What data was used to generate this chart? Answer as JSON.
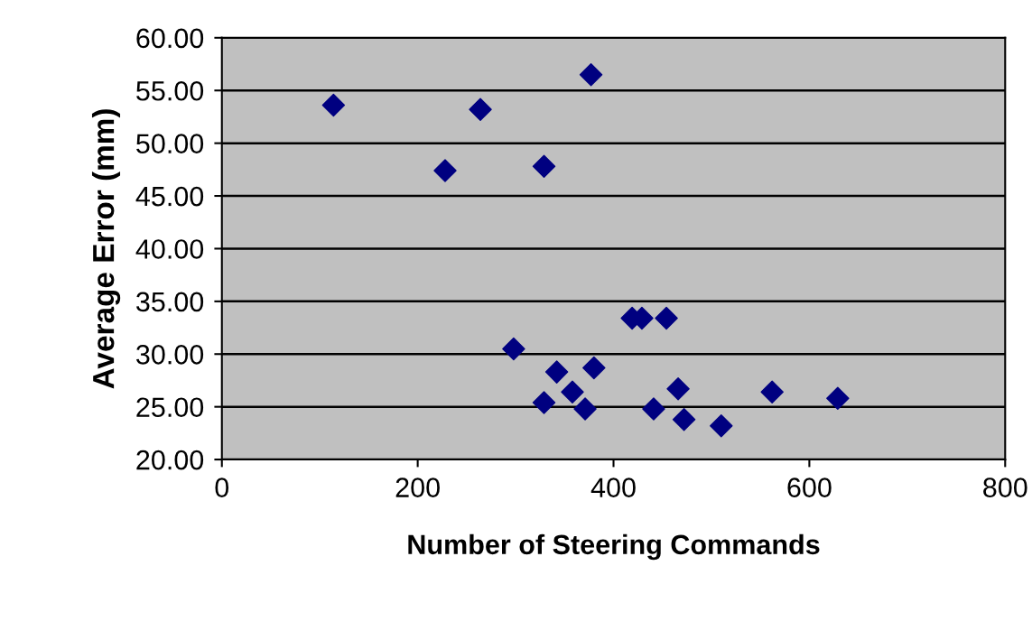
{
  "chart_data": {
    "type": "scatter",
    "xlabel": "Number of Steering Commands",
    "ylabel": "Average Error (mm)",
    "x": [
      114,
      228,
      264,
      329,
      377,
      298,
      342,
      329,
      358,
      371,
      380,
      419,
      429,
      454,
      441,
      466,
      472,
      510,
      562,
      629
    ],
    "series": [
      {
        "color": "#000080",
        "values": [
          53.6,
          47.4,
          53.2,
          47.8,
          56.5,
          30.5,
          28.3,
          25.4,
          26.4,
          24.8,
          28.7,
          33.4,
          33.4,
          33.4,
          24.8,
          26.7,
          23.8,
          23.2,
          26.4,
          25.8
        ]
      }
    ],
    "xlim": [
      0,
      800
    ],
    "xticks": [
      0,
      200,
      400,
      600,
      800
    ],
    "ylim": [
      20,
      60
    ],
    "yticks": [
      {
        "value": 20,
        "label": "20.00"
      },
      {
        "value": 25,
        "label": "25.00"
      },
      {
        "value": 30,
        "label": "30.00"
      },
      {
        "value": 35,
        "label": "35.00"
      },
      {
        "value": 40,
        "label": "40.00"
      },
      {
        "value": 45,
        "label": "45.00"
      },
      {
        "value": 50,
        "label": "50.00"
      },
      {
        "value": 55,
        "label": "55.00"
      },
      {
        "value": 60,
        "label": "60.00"
      }
    ],
    "grid": "y",
    "marker": "diamond",
    "legend": false
  }
}
